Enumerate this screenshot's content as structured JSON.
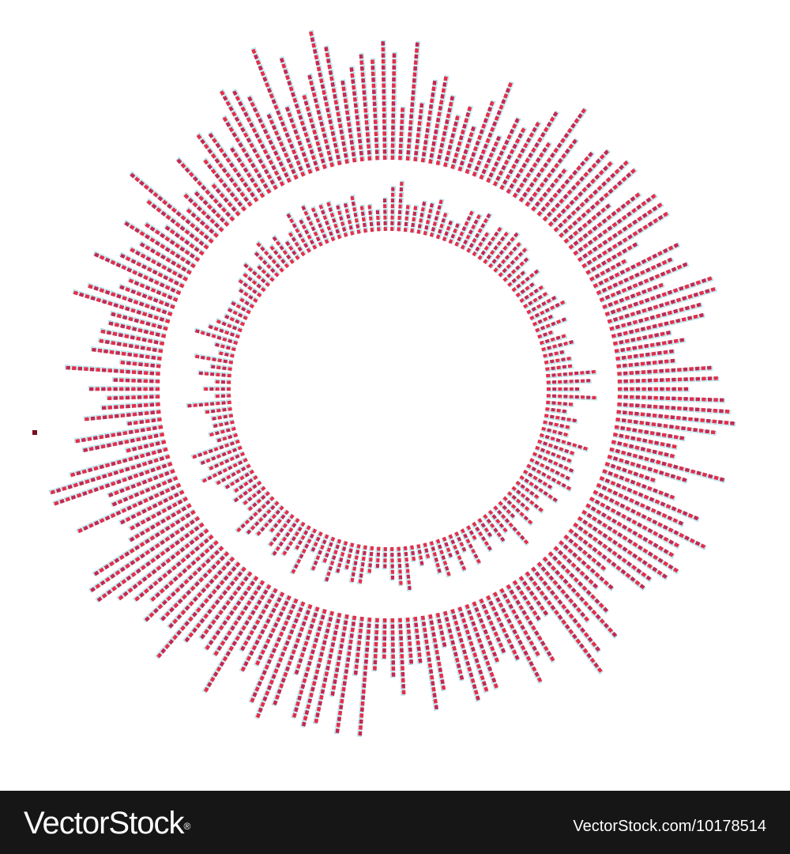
{
  "artwork": {
    "colors": {
      "background": "#ffffff",
      "block_fill": "#e0304c",
      "block_fill_dark": "#c02a52",
      "block_outline": "#8fdde8",
      "accent_dot": "#7a0f1f"
    }
  },
  "footer": {
    "brand": "VectorStock",
    "registered_mark": "®",
    "image_id": "VectorStock.com/10178514",
    "background": "#161616",
    "text_color": "#ffffff"
  }
}
